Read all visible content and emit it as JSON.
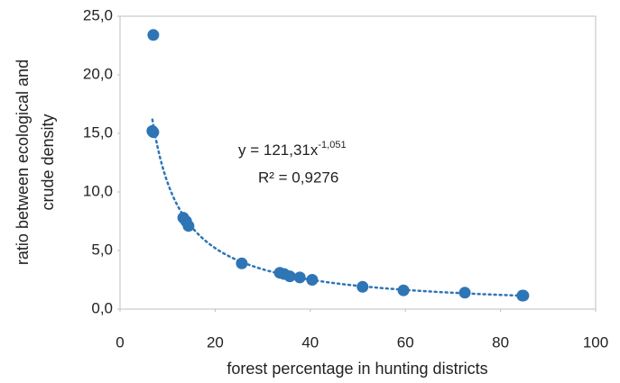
{
  "chart_data": {
    "type": "scatter",
    "xlabel": "forest percentage in hunting districts",
    "ylabel": [
      "ratio between ecological and",
      "crude density"
    ],
    "x": [
      7.0,
      6.8,
      7.0,
      13.3,
      13.9,
      14.4,
      25.6,
      33.6,
      34.5,
      35.7,
      37.8,
      40.4,
      51.0,
      59.6,
      72.5,
      84.6,
      84.8
    ],
    "y": [
      23.4,
      15.2,
      15.1,
      7.8,
      7.5,
      7.1,
      3.9,
      3.1,
      3.0,
      2.8,
      2.7,
      2.5,
      1.9,
      1.6,
      1.4,
      1.15,
      1.15
    ],
    "color": "#2e75b6",
    "xlim": [
      0,
      100
    ],
    "xticks": [
      0,
      20,
      40,
      60,
      80,
      100
    ],
    "ylim": [
      0,
      25
    ],
    "yticks": [
      {
        "value": 0,
        "label": "0,0"
      },
      {
        "value": 5,
        "label": "5,0"
      },
      {
        "value": 10,
        "label": "10,0"
      },
      {
        "value": 15,
        "label": "15,0"
      },
      {
        "value": 20,
        "label": "20,0"
      },
      {
        "value": 25,
        "label": "25,0"
      }
    ],
    "grid": false,
    "trendline": {
      "kind": "power",
      "coefficient": 121.31,
      "power": -1.051,
      "equation": "y = 121,31x",
      "exponent": "-1,051",
      "r_squared": "R² = 0,9276"
    }
  }
}
